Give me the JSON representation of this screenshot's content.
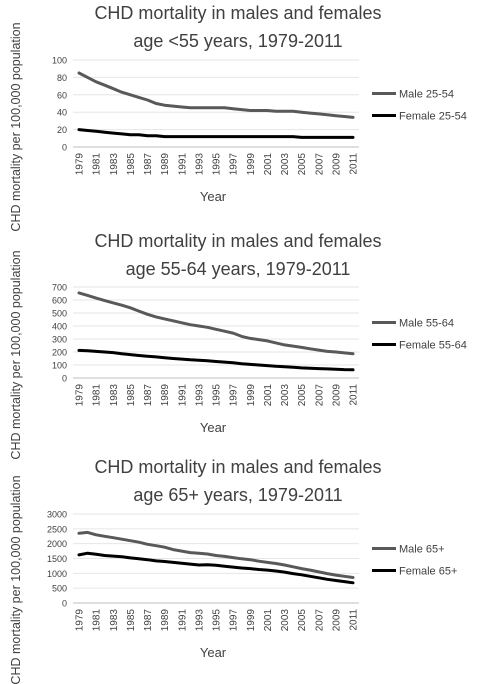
{
  "chart_data": [
    {
      "type": "line",
      "title_lines": [
        "CHD mortality in males and females",
        "age <55 years, 1979-2011"
      ],
      "xlabel": "Year",
      "ylabel": "CHD mortality per 100,000 population",
      "ylim": [
        0,
        100
      ],
      "yticks": [
        0,
        20,
        40,
        60,
        80,
        100
      ],
      "x_tick_labels": [
        "1979",
        "1981",
        "1983",
        "1985",
        "1987",
        "1989",
        "1991",
        "1993",
        "1995",
        "1997",
        "1999",
        "2001",
        "2003",
        "2005",
        "2007",
        "2009",
        "2011"
      ],
      "x": [
        1979,
        1980,
        1981,
        1982,
        1983,
        1984,
        1985,
        1986,
        1987,
        1988,
        1989,
        1990,
        1991,
        1992,
        1993,
        1994,
        1995,
        1996,
        1997,
        1998,
        1999,
        2000,
        2001,
        2002,
        2003,
        2004,
        2005,
        2006,
        2007,
        2008,
        2009,
        2010,
        2011
      ],
      "legend_position": "right",
      "series": [
        {
          "name": "Male 25-54",
          "color": "#595959",
          "values": [
            85,
            80,
            75,
            71,
            67,
            63,
            60,
            57,
            54,
            50,
            48,
            47,
            46,
            45,
            45,
            45,
            45,
            45,
            44,
            43,
            42,
            42,
            42,
            41,
            41,
            41,
            40,
            39,
            38,
            37,
            36,
            35,
            34
          ]
        },
        {
          "name": "Female 25-54",
          "color": "#000000",
          "values": [
            20,
            19,
            18,
            17,
            16,
            15,
            14,
            14,
            13,
            13,
            12,
            12,
            12,
            12,
            12,
            12,
            12,
            12,
            12,
            12,
            12,
            12,
            12,
            12,
            12,
            12,
            11,
            11,
            11,
            11,
            11,
            11,
            11
          ]
        }
      ]
    },
    {
      "type": "line",
      "title_lines": [
        "CHD mortality in males and females",
        "age 55-64 years, 1979-2011"
      ],
      "xlabel": "Year",
      "ylabel": "CHD mortality per 100,000 population",
      "ylim": [
        0,
        700
      ],
      "yticks": [
        0,
        100,
        200,
        300,
        400,
        500,
        600,
        700
      ],
      "x_tick_labels": [
        "1979",
        "1981",
        "1983",
        "1985",
        "1987",
        "1989",
        "1991",
        "1993",
        "1995",
        "1997",
        "1999",
        "2001",
        "2003",
        "2005",
        "2007",
        "2009",
        "2011"
      ],
      "x": [
        1979,
        1980,
        1981,
        1982,
        1983,
        1984,
        1985,
        1986,
        1987,
        1988,
        1989,
        1990,
        1991,
        1992,
        1993,
        1994,
        1995,
        1996,
        1997,
        1998,
        1999,
        2000,
        2001,
        2002,
        2003,
        2004,
        2005,
        2006,
        2007,
        2008,
        2009,
        2010,
        2011
      ],
      "legend_position": "right",
      "series": [
        {
          "name": "Male 55-64",
          "color": "#595959",
          "values": [
            655,
            635,
            615,
            595,
            578,
            560,
            540,
            515,
            490,
            470,
            455,
            440,
            425,
            410,
            400,
            390,
            375,
            360,
            345,
            320,
            305,
            295,
            285,
            270,
            255,
            245,
            235,
            225,
            215,
            205,
            200,
            193,
            187
          ]
        },
        {
          "name": "Female 55-64",
          "color": "#000000",
          "values": [
            212,
            210,
            205,
            200,
            195,
            187,
            180,
            173,
            167,
            162,
            156,
            150,
            145,
            140,
            137,
            132,
            127,
            122,
            117,
            110,
            105,
            100,
            95,
            90,
            86,
            82,
            78,
            75,
            72,
            70,
            68,
            65,
            63
          ]
        }
      ]
    },
    {
      "type": "line",
      "title_lines": [
        "CHD mortality in males and females",
        "age 65+ years, 1979-2011"
      ],
      "xlabel": "Year",
      "ylabel": "CHD mortality per 100,000 population",
      "ylim": [
        0,
        3000
      ],
      "yticks": [
        0,
        500,
        1000,
        1500,
        2000,
        2500,
        3000
      ],
      "x_tick_labels": [
        "1979",
        "1981",
        "1983",
        "1985",
        "1987",
        "1989",
        "1991",
        "1993",
        "1995",
        "1997",
        "1999",
        "2001",
        "2003",
        "2005",
        "2007",
        "2009",
        "2011"
      ],
      "x": [
        1979,
        1980,
        1981,
        1982,
        1983,
        1984,
        1985,
        1986,
        1987,
        1988,
        1989,
        1990,
        1991,
        1992,
        1993,
        1994,
        1995,
        1996,
        1997,
        1998,
        1999,
        2000,
        2001,
        2002,
        2003,
        2004,
        2005,
        2006,
        2007,
        2008,
        2009,
        2010,
        2011
      ],
      "legend_position": "right",
      "series": [
        {
          "name": "Male 65+",
          "color": "#595959",
          "values": [
            2350,
            2380,
            2300,
            2250,
            2200,
            2150,
            2100,
            2050,
            1980,
            1930,
            1880,
            1800,
            1750,
            1700,
            1680,
            1650,
            1600,
            1570,
            1530,
            1490,
            1460,
            1410,
            1370,
            1330,
            1280,
            1220,
            1160,
            1110,
            1050,
            990,
            940,
            900,
            860
          ]
        },
        {
          "name": "Female 65+",
          "color": "#000000",
          "values": [
            1620,
            1680,
            1640,
            1600,
            1580,
            1560,
            1520,
            1490,
            1460,
            1420,
            1400,
            1370,
            1340,
            1310,
            1280,
            1290,
            1270,
            1240,
            1210,
            1180,
            1160,
            1130,
            1110,
            1080,
            1040,
            990,
            950,
            900,
            850,
            800,
            760,
            720,
            680
          ]
        }
      ]
    }
  ]
}
